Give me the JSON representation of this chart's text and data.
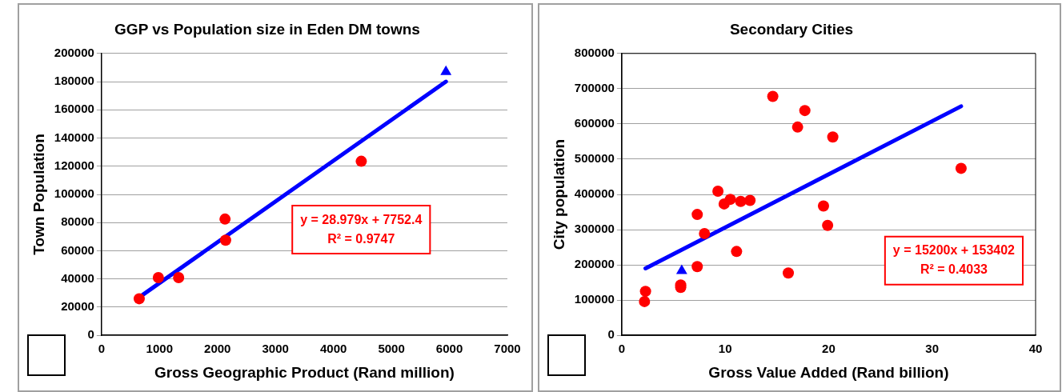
{
  "chart_data": [
    {
      "type": "scatter",
      "title": "GGP vs Population size in Eden DM towns",
      "xlabel": "Gross Geographic Product (Rand million)",
      "ylabel": "Town Population",
      "xlim": [
        0,
        7000
      ],
      "xticks": [
        0,
        1000,
        2000,
        3000,
        4000,
        5000,
        6000,
        7000
      ],
      "ylim": [
        0,
        200000
      ],
      "yticks": [
        0,
        20000,
        40000,
        60000,
        80000,
        100000,
        120000,
        140000,
        160000,
        180000,
        200000
      ],
      "grid": "y",
      "legend": false,
      "annotations": [
        "y = 28.979x + 7752.4",
        "R² = 0.9747"
      ],
      "series": [
        {
          "type": "scatter",
          "marker": "circle",
          "color": "#ff0000",
          "x": [
            650,
            980,
            1330,
            2130,
            2140,
            4480
          ],
          "values": [
            26000,
            41000,
            41000,
            82500,
            67500,
            123500
          ]
        },
        {
          "type": "scatter",
          "marker": "triangle",
          "color": "#0000ff",
          "x": [
            5940
          ],
          "values": [
            187000
          ]
        },
        {
          "type": "line",
          "marker": "none",
          "color": "#0000ff",
          "x": [
            650,
            5940
          ],
          "values": [
            27000,
            180000
          ]
        }
      ]
    },
    {
      "type": "scatter",
      "title": "Secondary Cities",
      "xlabel": "Gross Value Added (Rand billion)",
      "ylabel": "City population",
      "xlim": [
        0,
        40
      ],
      "xticks": [
        0,
        10,
        20,
        30,
        40
      ],
      "ylim": [
        0,
        800000
      ],
      "yticks": [
        0,
        100000,
        200000,
        300000,
        400000,
        500000,
        600000,
        700000,
        800000
      ],
      "grid": "y",
      "legend": false,
      "annotations": [
        "y = 15200x + 153402",
        "R² = 0.4033"
      ],
      "series": [
        {
          "type": "scatter",
          "marker": "circle",
          "color": "#ff0000",
          "x": [
            2.2,
            2.3,
            5.7,
            5.7,
            7.3,
            7.3,
            8.0,
            9.3,
            9.9,
            10.5,
            11.1,
            11.5,
            12.4,
            14.6,
            16.1,
            17.0,
            17.7,
            19.5,
            19.9,
            20.4,
            32.8
          ],
          "values": [
            96000,
            125000,
            143000,
            136000,
            343000,
            195000,
            289000,
            409000,
            373000,
            386000,
            238000,
            380000,
            383000,
            678000,
            177000,
            591000,
            638000,
            367000,
            312000,
            563000,
            474000
          ]
        },
        {
          "type": "scatter",
          "marker": "triangle",
          "color": "#0000ff",
          "x": [
            5.8
          ],
          "values": [
            183000
          ]
        },
        {
          "type": "line",
          "marker": "none",
          "color": "#0000ff",
          "x": [
            2.3,
            32.8
          ],
          "values": [
            190000,
            650000
          ]
        }
      ]
    }
  ]
}
